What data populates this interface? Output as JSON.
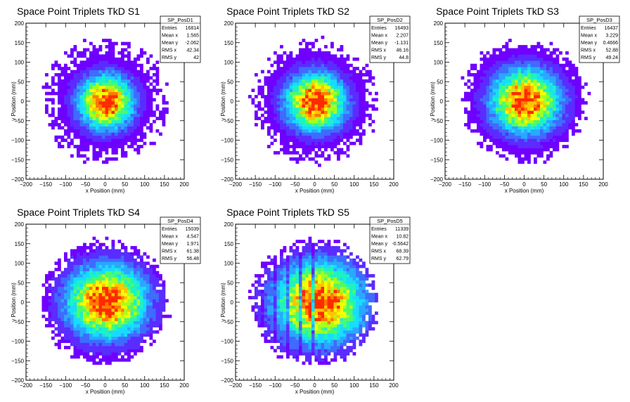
{
  "chart_data": [
    {
      "type": "heatmap",
      "title": "Space Point Triplets TkD S1",
      "xlabel": "x Position (mm)",
      "ylabel": "y Position (mm)",
      "xlim": [
        -200,
        200
      ],
      "ylim": [
        -200,
        200
      ],
      "xticks": [
        "−200",
        "−150",
        "−100",
        "−50",
        "0",
        "50",
        "100",
        "150",
        "200"
      ],
      "yticks": [
        "200",
        "150",
        "100",
        "50",
        "0",
        "−50",
        "−100",
        "−150",
        "−200"
      ],
      "stats": {
        "name": "SP_PosD1",
        "rows": [
          {
            "label": "Entries",
            "value": "16814"
          },
          {
            "label": "Mean x",
            "value": "1.565"
          },
          {
            "label": "Mean y",
            "value": "-2.062"
          },
          {
            "label": "RMS x",
            "value": "42.34"
          },
          {
            "label": "RMS y",
            "value": "42"
          }
        ]
      },
      "entries": 16814,
      "mean_x": 1.565,
      "mean_y": -2.062,
      "rms_x": 42.34,
      "rms_y": 42,
      "radius": 160,
      "seed": 11,
      "stripes": false
    },
    {
      "type": "heatmap",
      "title": "Space Point Triplets TkD S2",
      "xlabel": "x Position (mm)",
      "ylabel": "y Position (mm)",
      "xlim": [
        -200,
        200
      ],
      "ylim": [
        -200,
        200
      ],
      "xticks": [
        "−200",
        "−150",
        "−100",
        "−50",
        "0",
        "50",
        "100",
        "150",
        "200"
      ],
      "yticks": [
        "200",
        "150",
        "100",
        "50",
        "0",
        "−50",
        "−100",
        "−150",
        "−200"
      ],
      "stats": {
        "name": "SP_PosD2",
        "rows": [
          {
            "label": "Entries",
            "value": "16493"
          },
          {
            "label": "Mean x",
            "value": "2.207"
          },
          {
            "label": "Mean y",
            "value": "-1.131"
          },
          {
            "label": "RMS x",
            "value": "46.16"
          },
          {
            "label": "RMS y",
            "value": "44.8"
          }
        ]
      },
      "entries": 16493,
      "mean_x": 2.207,
      "mean_y": -1.131,
      "rms_x": 46.16,
      "rms_y": 44.8,
      "radius": 160,
      "seed": 23,
      "stripes": false
    },
    {
      "type": "heatmap",
      "title": "Space Point Triplets TkD S3",
      "xlabel": "x Position (mm)",
      "ylabel": "y Position (mm)",
      "xlim": [
        -200,
        200
      ],
      "ylim": [
        -200,
        200
      ],
      "xticks": [
        "−200",
        "−150",
        "−100",
        "−50",
        "0",
        "50",
        "100",
        "150",
        "200"
      ],
      "yticks": [
        "200",
        "150",
        "100",
        "50",
        "0",
        "−50",
        "−100",
        "−150",
        "−200"
      ],
      "stats": {
        "name": "SP_PosD3",
        "rows": [
          {
            "label": "Entries",
            "value": "16437"
          },
          {
            "label": "Mean x",
            "value": "3.229"
          },
          {
            "label": "Mean y",
            "value": "0.4666"
          },
          {
            "label": "RMS x",
            "value": "52.88"
          },
          {
            "label": "RMS y",
            "value": "49.24"
          }
        ]
      },
      "entries": 16437,
      "mean_x": 3.229,
      "mean_y": 0.4666,
      "rms_x": 52.88,
      "rms_y": 49.24,
      "radius": 160,
      "seed": 37,
      "stripes": false
    },
    {
      "type": "heatmap",
      "title": "Space Point Triplets TkD S4",
      "xlabel": "x Position (mm)",
      "ylabel": "y Position (mm)",
      "xlim": [
        -200,
        200
      ],
      "ylim": [
        -200,
        200
      ],
      "xticks": [
        "−200",
        "−150",
        "−100",
        "−50",
        "0",
        "50",
        "100",
        "150",
        "200"
      ],
      "yticks": [
        "200",
        "150",
        "100",
        "50",
        "0",
        "−50",
        "−100",
        "−150",
        "−200"
      ],
      "stats": {
        "name": "SP_PosD4",
        "rows": [
          {
            "label": "Entries",
            "value": "15039"
          },
          {
            "label": "Mean x",
            "value": "4.547"
          },
          {
            "label": "Mean y",
            "value": "1.971"
          },
          {
            "label": "RMS x",
            "value": "61.38"
          },
          {
            "label": "RMS y",
            "value": "56.48"
          }
        ]
      },
      "entries": 15039,
      "mean_x": 4.547,
      "mean_y": 1.971,
      "rms_x": 61.38,
      "rms_y": 56.48,
      "radius": 160,
      "seed": 53,
      "stripes": false
    },
    {
      "type": "heatmap",
      "title": "Space Point Triplets TkD S5",
      "xlabel": "x Position (mm)",
      "ylabel": "y Position (mm)",
      "xlim": [
        -200,
        200
      ],
      "ylim": [
        -200,
        200
      ],
      "xticks": [
        "−200",
        "−150",
        "−100",
        "−50",
        "0",
        "50",
        "100",
        "150",
        "200"
      ],
      "yticks": [
        "200",
        "150",
        "100",
        "50",
        "0",
        "−50",
        "−100",
        "−150",
        "−200"
      ],
      "stats": {
        "name": "SP_PosD5",
        "rows": [
          {
            "label": "Entries",
            "value": "11339"
          },
          {
            "label": "Mean x",
            "value": "10.82"
          },
          {
            "label": "Mean y",
            "value": "-0.5642"
          },
          {
            "label": "RMS x",
            "value": "68.39"
          },
          {
            "label": "RMS y",
            "value": "62.79"
          }
        ]
      },
      "entries": 11339,
      "mean_x": 10.82,
      "mean_y": -0.5642,
      "rms_x": 68.39,
      "rms_y": 62.79,
      "radius": 160,
      "seed": 71,
      "stripes": true
    }
  ],
  "colors": {
    "palette": [
      "#6f00ff",
      "#5a2cff",
      "#3f6bff",
      "#29a8ff",
      "#17dcff",
      "#1ef2c2",
      "#4dfa6a",
      "#a6ff1f",
      "#f4ff00",
      "#ffc400",
      "#ff7a00",
      "#ff2a00"
    ],
    "background": "#ffffff",
    "frame": "#000000"
  }
}
